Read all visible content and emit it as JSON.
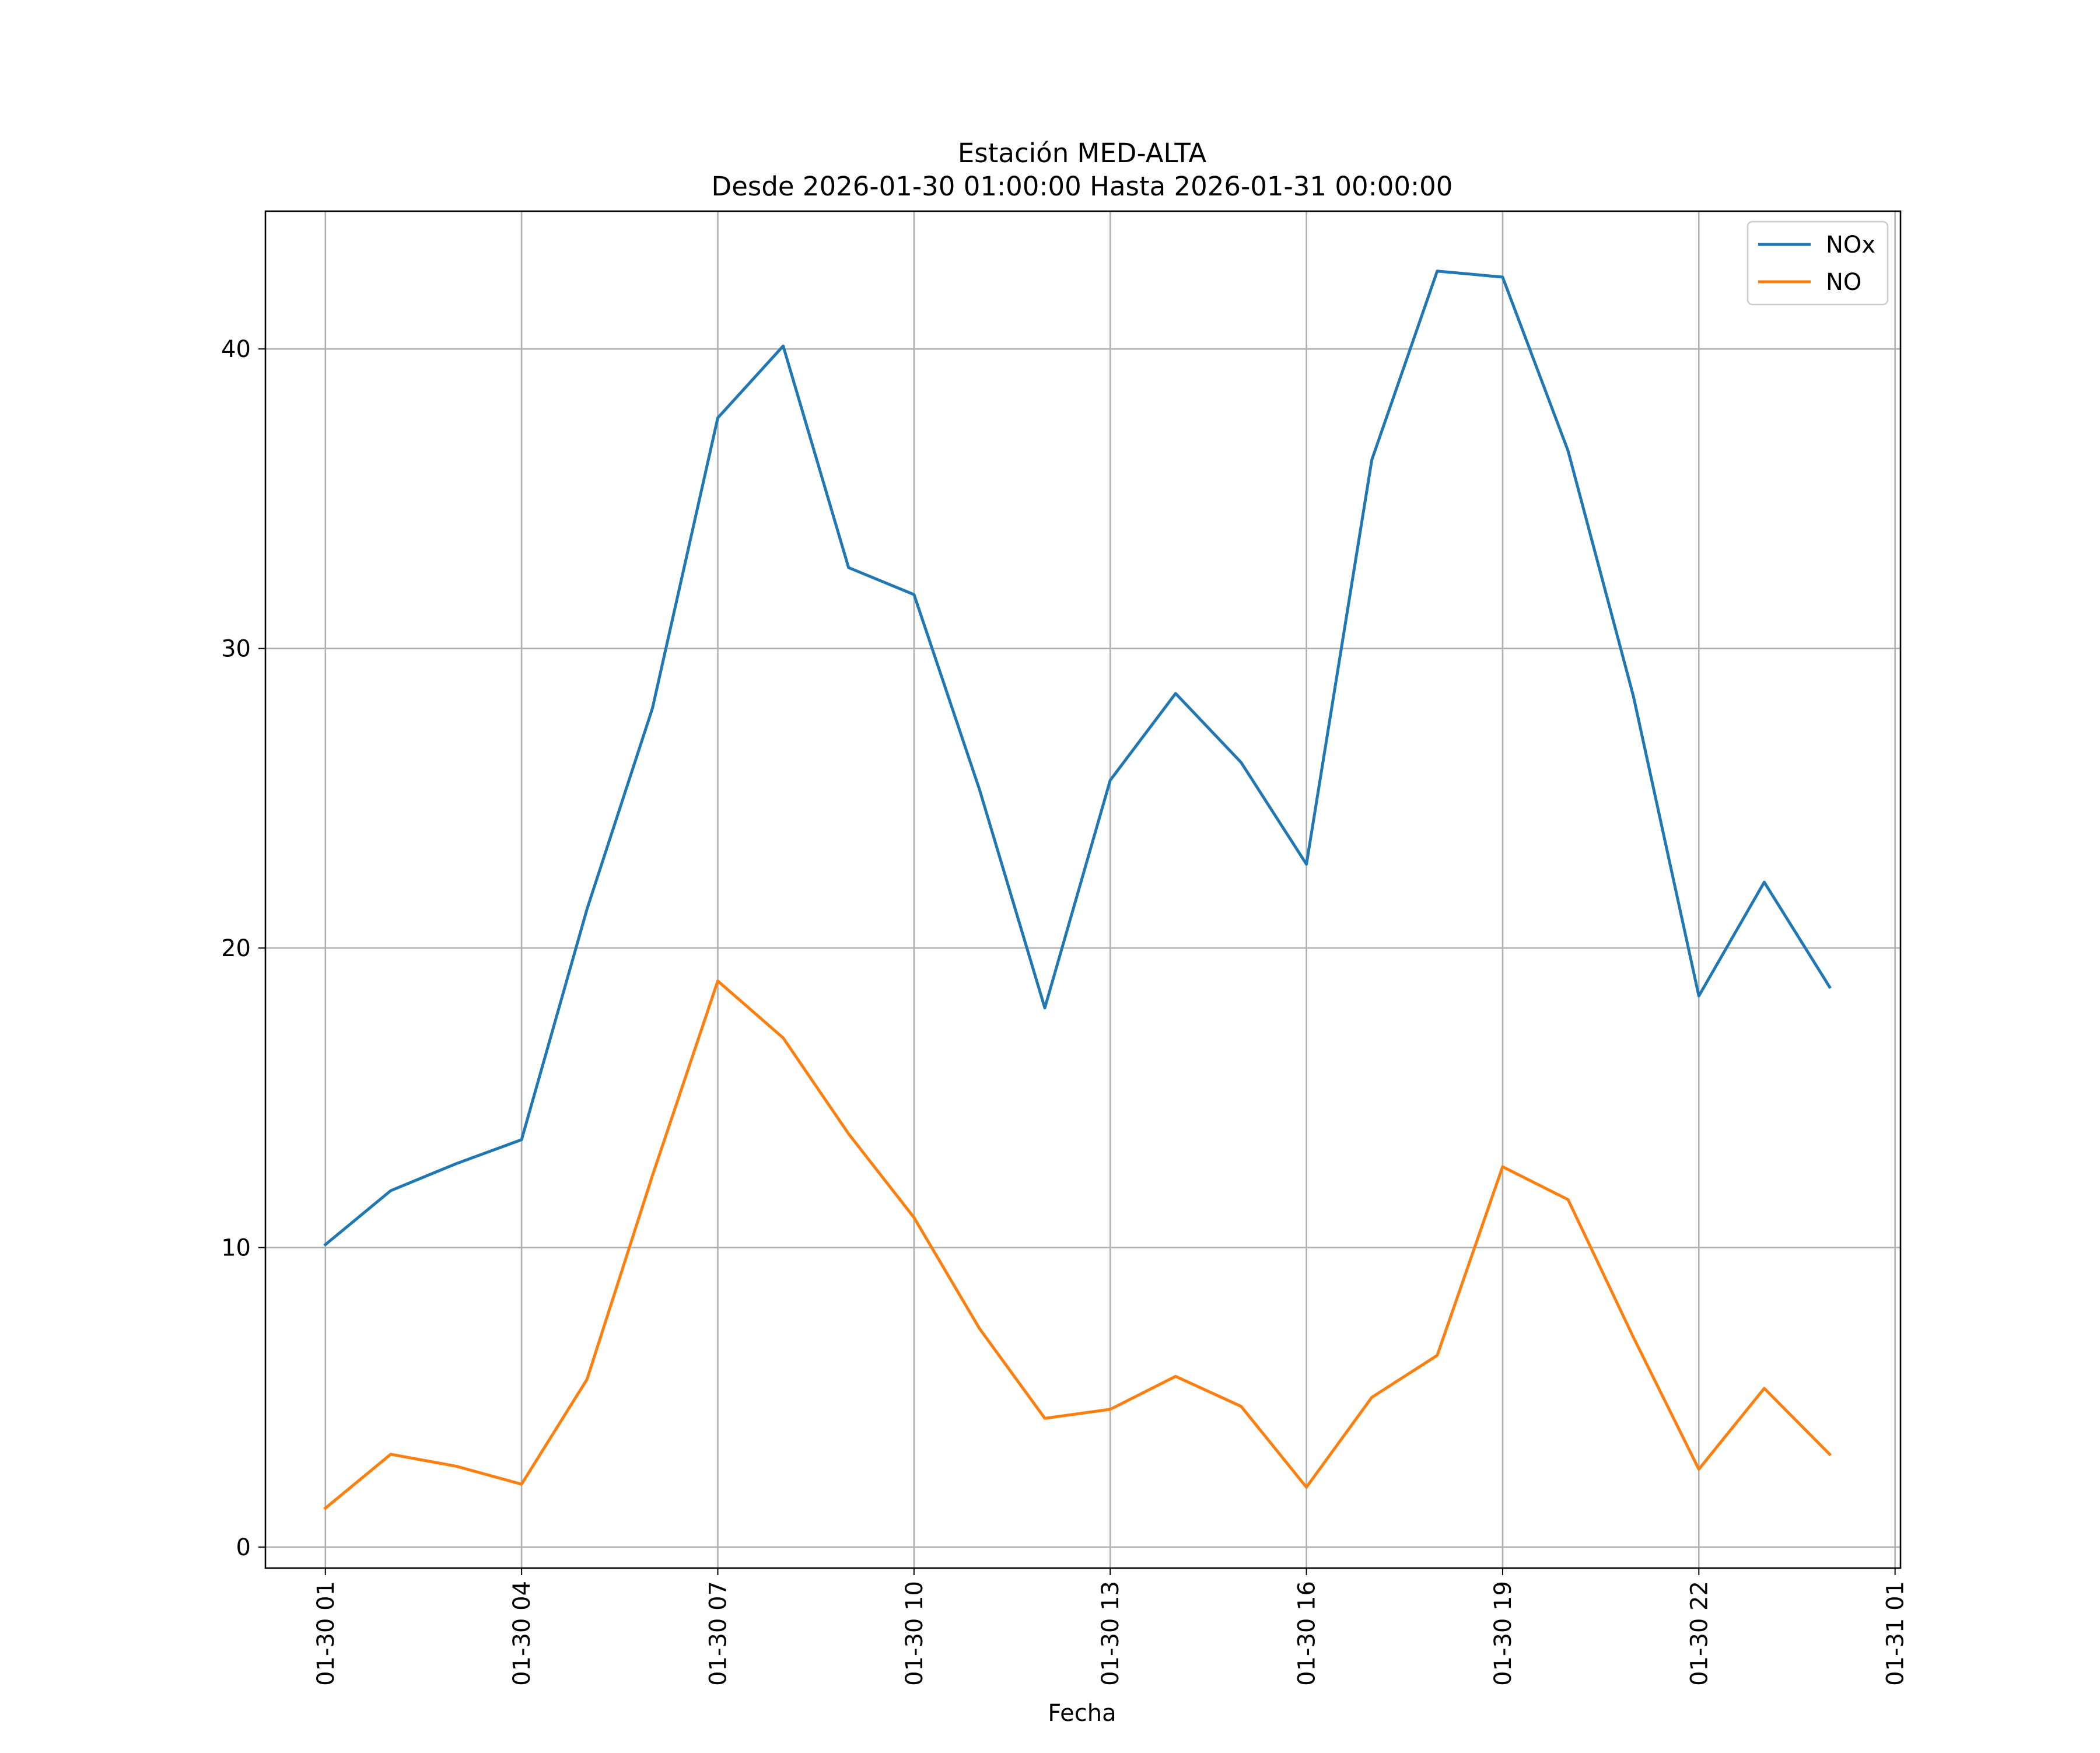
{
  "chart_data": {
    "type": "line",
    "title": "Estación MED-ALTA",
    "subtitle": "Desde 2026-01-30 01:00:00 Hasta 2026-01-31 00:00:00",
    "xlabel": "Fecha",
    "ylabel": "",
    "x": [
      "2026-01-30 01:00",
      "2026-01-30 02:00",
      "2026-01-30 03:00",
      "2026-01-30 04:00",
      "2026-01-30 05:00",
      "2026-01-30 06:00",
      "2026-01-30 07:00",
      "2026-01-30 08:00",
      "2026-01-30 09:00",
      "2026-01-30 10:00",
      "2026-01-30 11:00",
      "2026-01-30 12:00",
      "2026-01-30 13:00",
      "2026-01-30 14:00",
      "2026-01-30 15:00",
      "2026-01-30 16:00",
      "2026-01-30 17:00",
      "2026-01-30 18:00",
      "2026-01-30 19:00",
      "2026-01-30 20:00",
      "2026-01-30 21:00",
      "2026-01-30 22:00",
      "2026-01-30 23:00",
      "2026-01-31 00:00"
    ],
    "xlim": [
      "2026-01-30 00:05",
      "2026-01-31 01:05"
    ],
    "ylim": [
      -0.7,
      44.6
    ],
    "x_ticks": [
      {
        "value": "2026-01-30 01:00",
        "label": "01-30 01"
      },
      {
        "value": "2026-01-30 04:00",
        "label": "01-30 04"
      },
      {
        "value": "2026-01-30 07:00",
        "label": "01-30 07"
      },
      {
        "value": "2026-01-30 10:00",
        "label": "01-30 10"
      },
      {
        "value": "2026-01-30 13:00",
        "label": "01-30 13"
      },
      {
        "value": "2026-01-30 16:00",
        "label": "01-30 16"
      },
      {
        "value": "2026-01-30 19:00",
        "label": "01-30 19"
      },
      {
        "value": "2026-01-30 22:00",
        "label": "01-30 22"
      },
      {
        "value": "2026-01-31 01:00",
        "label": "01-31 01"
      }
    ],
    "y_ticks": [
      0,
      10,
      20,
      30,
      40
    ],
    "grid": true,
    "legend_position": "top-right",
    "series": [
      {
        "name": "NOx",
        "color": "#1f77b4",
        "values": [
          10.1,
          11.9,
          12.8,
          13.6,
          21.3,
          28.0,
          37.7,
          40.1,
          32.7,
          31.8,
          25.3,
          18.0,
          25.6,
          28.5,
          26.2,
          22.8,
          36.3,
          42.6,
          42.4,
          36.6,
          28.4,
          18.4,
          22.2,
          18.7
        ]
      },
      {
        "name": "NO",
        "color": "#ff7f0e",
        "values": [
          1.3,
          3.1,
          2.7,
          2.1,
          5.6,
          12.4,
          18.9,
          17.0,
          13.8,
          11.0,
          7.3,
          4.3,
          4.6,
          5.7,
          4.7,
          2.0,
          5.0,
          6.4,
          12.7,
          11.6,
          7.0,
          2.6,
          5.3,
          3.1
        ]
      }
    ]
  }
}
